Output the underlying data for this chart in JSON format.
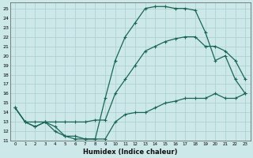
{
  "xlabel": "Humidex (Indice chaleur)",
  "xlim": [
    -0.5,
    23.5
  ],
  "ylim": [
    11,
    25.6
  ],
  "yticks": [
    11,
    12,
    13,
    14,
    15,
    16,
    17,
    18,
    19,
    20,
    21,
    22,
    23,
    24,
    25
  ],
  "xticks": [
    0,
    1,
    2,
    3,
    4,
    5,
    6,
    7,
    8,
    9,
    10,
    11,
    12,
    13,
    14,
    15,
    16,
    17,
    18,
    19,
    20,
    21,
    22,
    23
  ],
  "bg_color": "#cce8e8",
  "grid_color": "#aacece",
  "line_color": "#1a6655",
  "line_width": 0.9,
  "marker": "+",
  "markersize": 3.5,
  "markeredgewidth": 0.8,
  "curve1_y": [
    14.5,
    13.0,
    12.5,
    13.0,
    12.0,
    11.5,
    11.2,
    11.2,
    11.2,
    11.2,
    13.0,
    13.8,
    14.0,
    14.0,
    14.5,
    15.0,
    15.2,
    15.5,
    15.5,
    15.5,
    16.0,
    15.5,
    15.5,
    16.0
  ],
  "curve2_y": [
    14.5,
    13.0,
    13.0,
    13.0,
    13.0,
    13.0,
    13.0,
    13.0,
    13.2,
    13.2,
    16.0,
    17.5,
    19.0,
    20.5,
    21.0,
    21.5,
    21.8,
    22.0,
    22.0,
    21.0,
    21.0,
    20.5,
    19.5,
    17.5
  ],
  "curve3_y": [
    14.5,
    13.0,
    12.5,
    13.0,
    12.5,
    11.5,
    11.5,
    11.2,
    11.2,
    15.5,
    19.5,
    22.0,
    23.5,
    25.0,
    25.2,
    25.2,
    25.0,
    25.0,
    24.8,
    22.5,
    19.5,
    20.0,
    17.5,
    16.0
  ]
}
